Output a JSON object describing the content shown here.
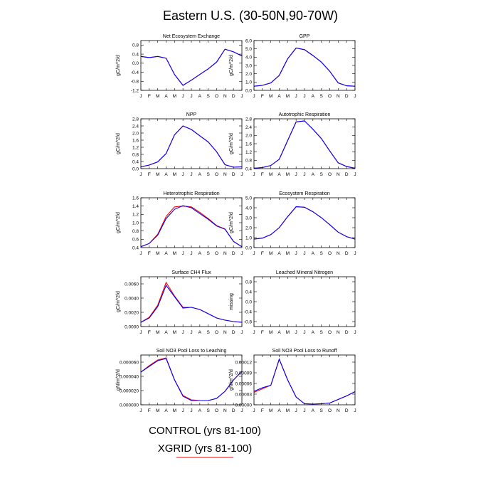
{
  "figure": {
    "title": "Eastern U.S. (30-50N,90-70W)",
    "months": [
      "J",
      "F",
      "M",
      "A",
      "M",
      "J",
      "J",
      "A",
      "S",
      "O",
      "N",
      "D",
      "J"
    ],
    "legend": [
      {
        "label": "CONTROL (yrs 81-100)",
        "color": "#0000ff"
      },
      {
        "label": "XGRID (yrs 81-100)",
        "color": "#ff0000"
      }
    ]
  },
  "chart_data": [
    {
      "type": "line",
      "title": "Net Ecosystem Exchange",
      "ylabel": "gC/m^2/d",
      "ylim": [
        -1.2,
        1.0
      ],
      "yticks": [
        0.8,
        0.4,
        0.0,
        -0.4,
        -0.8,
        -1.2
      ],
      "yticklabels": [
        "0.8",
        "0.4",
        "0.0",
        "-0.4",
        "-0.8",
        "-1.2"
      ],
      "series": [
        {
          "color": "#ff0000",
          "values": [
            0.3,
            0.25,
            0.3,
            0.22,
            -0.5,
            -0.98,
            -0.75,
            -0.5,
            -0.25,
            0.05,
            0.62,
            0.5,
            0.32
          ]
        },
        {
          "color": "#0000ff",
          "values": [
            0.3,
            0.25,
            0.3,
            0.22,
            -0.5,
            -0.98,
            -0.75,
            -0.5,
            -0.25,
            0.05,
            0.62,
            0.5,
            0.32
          ]
        }
      ]
    },
    {
      "type": "line",
      "title": "GPP",
      "ylabel": "gC/m^2/d",
      "ylim": [
        0.0,
        6.0
      ],
      "yticks": [
        0,
        1,
        2,
        3,
        4,
        5,
        6
      ],
      "yticklabels": [
        "0.0",
        "1.0",
        "2.0",
        "3.0",
        "4.0",
        "5.0",
        "6.0"
      ],
      "series": [
        {
          "color": "#ff0000",
          "values": [
            0.5,
            0.6,
            0.9,
            1.8,
            3.8,
            5.1,
            4.9,
            4.2,
            3.4,
            2.3,
            0.9,
            0.55,
            0.5
          ]
        },
        {
          "color": "#0000ff",
          "values": [
            0.5,
            0.6,
            0.9,
            1.8,
            3.8,
            5.1,
            4.9,
            4.2,
            3.4,
            2.3,
            0.9,
            0.55,
            0.5
          ]
        }
      ]
    },
    {
      "type": "line",
      "title": "NPP",
      "ylabel": "gC/m^2/d",
      "ylim": [
        0.0,
        2.8
      ],
      "yticks": [
        0,
        0.4,
        0.8,
        1.2,
        1.6,
        2.0,
        2.4,
        2.8
      ],
      "yticklabels": [
        "0.0",
        "0.4",
        "0.8",
        "1.2",
        "1.6",
        "2.0",
        "2.4",
        "2.8"
      ],
      "series": [
        {
          "color": "#ff0000",
          "values": [
            0.1,
            0.2,
            0.38,
            0.85,
            1.9,
            2.4,
            2.2,
            1.85,
            1.5,
            0.95,
            0.22,
            0.08,
            0.1
          ]
        },
        {
          "color": "#0000ff",
          "values": [
            0.1,
            0.2,
            0.38,
            0.85,
            1.9,
            2.4,
            2.2,
            1.85,
            1.5,
            0.95,
            0.22,
            0.08,
            0.1
          ]
        }
      ]
    },
    {
      "type": "line",
      "title": "Autotrophic Respiration",
      "ylabel": "gC/m^2/d",
      "ylim": [
        0.4,
        2.8
      ],
      "yticks": [
        0.4,
        0.8,
        1.2,
        1.6,
        2.0,
        2.4,
        2.8
      ],
      "yticklabels": [
        "0.4",
        "0.8",
        "1.2",
        "1.6",
        "2.0",
        "2.4",
        "2.8"
      ],
      "series": [
        {
          "color": "#ff0000",
          "values": [
            0.42,
            0.45,
            0.55,
            0.85,
            1.75,
            2.65,
            2.7,
            2.3,
            1.85,
            1.25,
            0.68,
            0.5,
            0.42
          ]
        },
        {
          "color": "#0000ff",
          "values": [
            0.42,
            0.45,
            0.55,
            0.85,
            1.75,
            2.65,
            2.7,
            2.3,
            1.85,
            1.25,
            0.68,
            0.5,
            0.42
          ]
        }
      ]
    },
    {
      "type": "line",
      "title": "Heterotrophic Respiration",
      "ylabel": "gC/m^2/d",
      "ylim": [
        0.4,
        1.6
      ],
      "yticks": [
        0.4,
        0.6,
        0.8,
        1.0,
        1.2,
        1.4,
        1.6
      ],
      "yticklabels": [
        "0.4",
        "0.6",
        "0.8",
        "1.0",
        "1.2",
        "1.4",
        "1.6"
      ],
      "series": [
        {
          "color": "#ff0000",
          "values": [
            0.42,
            0.5,
            0.72,
            1.15,
            1.38,
            1.4,
            1.38,
            1.25,
            1.1,
            0.93,
            0.85,
            0.55,
            0.42
          ]
        },
        {
          "color": "#0000ff",
          "values": [
            0.42,
            0.5,
            0.7,
            1.1,
            1.32,
            1.41,
            1.36,
            1.22,
            1.08,
            0.92,
            0.84,
            0.55,
            0.42
          ]
        }
      ]
    },
    {
      "type": "line",
      "title": "Ecosystem Respiration",
      "ylabel": "gC/m^2/d",
      "ylim": [
        0.0,
        5.0
      ],
      "yticks": [
        0,
        1,
        2,
        3,
        4,
        5
      ],
      "yticklabels": [
        "0.0",
        "1.0",
        "2.0",
        "3.0",
        "4.0",
        "5.0"
      ],
      "series": [
        {
          "color": "#ff0000",
          "values": [
            0.85,
            0.95,
            1.3,
            2.0,
            3.1,
            4.1,
            4.05,
            3.6,
            3.0,
            2.3,
            1.55,
            1.1,
            0.85
          ]
        },
        {
          "color": "#0000ff",
          "values": [
            0.85,
            0.95,
            1.3,
            2.0,
            3.1,
            4.1,
            4.05,
            3.6,
            3.0,
            2.3,
            1.55,
            1.1,
            0.85
          ]
        }
      ]
    },
    {
      "type": "line",
      "title": "Surface CH4 Flux",
      "ylabel": "gC/m^2/d",
      "ylim": [
        0.0,
        0.007
      ],
      "yticks": [
        0,
        0.002,
        0.004,
        0.006
      ],
      "yticklabels": [
        "0.0000",
        "0.0020",
        "0.0040",
        "0.0060"
      ],
      "series": [
        {
          "color": "#ff0000",
          "values": [
            0.0006,
            0.0013,
            0.003,
            0.0062,
            0.0043,
            0.0027,
            0.0027,
            0.0024,
            0.0018,
            0.0012,
            0.0009,
            0.0007,
            0.0006
          ]
        },
        {
          "color": "#0000ff",
          "values": [
            0.0006,
            0.0012,
            0.0028,
            0.0058,
            0.0042,
            0.0026,
            0.0027,
            0.0024,
            0.0018,
            0.0012,
            0.0009,
            0.0007,
            0.0006
          ]
        }
      ]
    },
    {
      "type": "line",
      "title": "Leached Mineral Nitrogen",
      "ylabel": "missing",
      "ylim": [
        -1.0,
        1.0
      ],
      "yticks": [
        0.8,
        0.4,
        0.0,
        -0.4,
        -0.8
      ],
      "yticklabels": [
        "0.8",
        "0.4",
        "0.0",
        "-0.4",
        "-0.8"
      ],
      "series": []
    },
    {
      "type": "line",
      "title": "Soil NO3 Pool Loss to Leaching",
      "ylabel": "gN/m^2/d",
      "ylim": [
        0.0,
        7e-05
      ],
      "yticks": [
        0,
        2e-05,
        4e-05,
        6e-05
      ],
      "yticklabels": [
        "0.000000",
        "0.000020",
        "0.000040",
        "0.000060"
      ],
      "series": [
        {
          "color": "#ff0000",
          "values": [
            4.6e-05,
            5.5e-05,
            6.3e-05,
            6.6e-05,
            3.5e-05,
            1.3e-05,
            7e-06,
            6e-06,
            6e-06,
            9e-06,
            1.9e-05,
            3.5e-05,
            4.7e-05
          ]
        },
        {
          "color": "#0000ff",
          "values": [
            4.6e-05,
            5.4e-05,
            6.2e-05,
            6.5e-05,
            3.5e-05,
            1.2e-05,
            6e-06,
            6e-06,
            6e-06,
            9e-06,
            1.9e-05,
            3.5e-05,
            4.7e-05
          ]
        }
      ]
    },
    {
      "type": "line",
      "title": "Soil NO3 Pool Loss to Runoff",
      "ylabel": "gN/m^2/d",
      "ylim": [
        0.0,
        0.00014
      ],
      "yticks": [
        0,
        3e-05,
        6e-05,
        9e-05,
        0.00012
      ],
      "yticklabels": [
        "0.00000",
        "0.00003",
        "0.00006",
        "0.00009",
        "0.00012"
      ],
      "series": [
        {
          "color": "#ff0000",
          "values": [
            3.5e-05,
            4.5e-05,
            5.5e-05,
            0.000128,
            7e-05,
            2.2e-05,
            3e-06,
            2e-06,
            3e-06,
            5e-06,
            1.5e-05,
            2.5e-05,
            3.7e-05
          ]
        },
        {
          "color": "#0000ff",
          "values": [
            3.8e-05,
            4.8e-05,
            5.5e-05,
            0.000128,
            7e-05,
            2.2e-05,
            3e-06,
            2e-06,
            3e-06,
            5e-06,
            1.5e-05,
            2.5e-05,
            3.7e-05
          ]
        }
      ]
    }
  ]
}
